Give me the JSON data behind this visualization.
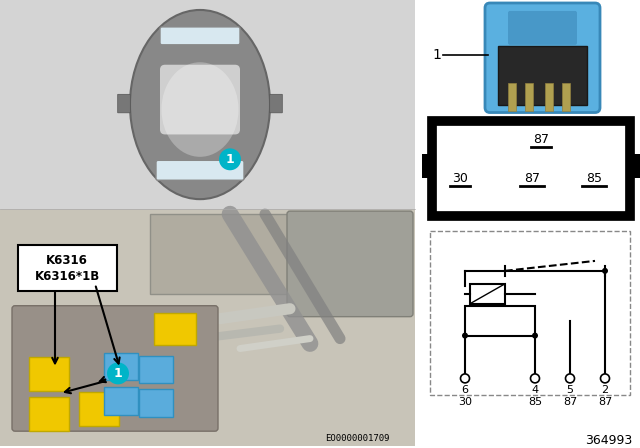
{
  "bg_color": "#ffffff",
  "car_bg": "#d4d4d4",
  "engine_bg": "#c8c4b8",
  "teal": "#00b4c8",
  "yellow": "#f0c800",
  "blue_relay": "#5aacdc",
  "relay_body_blue": "#5ab0e0",
  "part_number": "364993",
  "eo_code": "EO0000001709",
  "k_labels": [
    "K6316",
    "K6316*1B"
  ],
  "pin_top": "87",
  "pin_left": "30",
  "pin_mid": "87",
  "pin_right": "85",
  "sch_pins_num": [
    "6",
    "4",
    "5",
    "2"
  ],
  "sch_pins_name": [
    "30",
    "85",
    "87",
    "87"
  ]
}
